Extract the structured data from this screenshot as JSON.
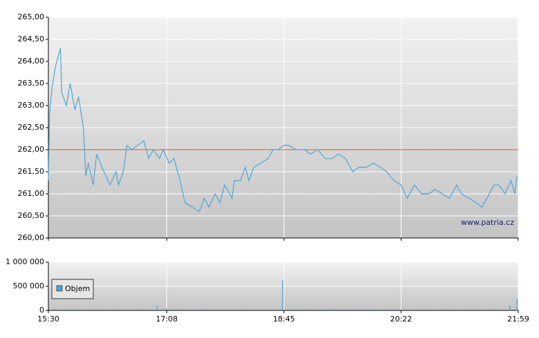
{
  "chart_data": [
    {
      "type": "line",
      "watermark": "www.patria.cz",
      "color": "#4da6d6",
      "reference_line": 262,
      "reference_color": "#e05050",
      "xlim": [
        930,
        1319
      ],
      "ylim": [
        260,
        265
      ],
      "yticks": [
        {
          "value": 260,
          "label": "260,00"
        },
        {
          "value": 260.5,
          "label": "260,50"
        },
        {
          "value": 261,
          "label": "261,00"
        },
        {
          "value": 261.5,
          "label": "261,50"
        },
        {
          "value": 262,
          "label": "262,00"
        },
        {
          "value": 262.5,
          "label": "262,50"
        },
        {
          "value": 263,
          "label": "263,00"
        },
        {
          "value": 263.5,
          "label": "263,50"
        },
        {
          "value": 264,
          "label": "264,00"
        },
        {
          "value": 264.5,
          "label": "264,50"
        },
        {
          "value": 265,
          "label": "265,00"
        }
      ],
      "x": [
        930,
        931,
        933,
        936,
        940,
        941,
        945,
        948,
        952,
        955,
        959,
        961,
        963,
        967,
        970,
        976,
        981,
        986,
        988,
        992,
        995,
        999,
        1004,
        1009,
        1013,
        1017,
        1022,
        1025,
        1030,
        1034,
        1039,
        1043,
        1049,
        1055,
        1059,
        1063,
        1068,
        1072,
        1076,
        1082,
        1084,
        1089,
        1093,
        1096,
        1100,
        1106,
        1112,
        1116,
        1120,
        1125,
        1129,
        1135,
        1142,
        1147,
        1153,
        1159,
        1165,
        1170,
        1176,
        1182,
        1187,
        1193,
        1199,
        1205,
        1210,
        1216,
        1222,
        1227,
        1233,
        1239,
        1245,
        1250,
        1256,
        1262,
        1268,
        1272,
        1278,
        1284,
        1289,
        1293,
        1299,
        1303,
        1308,
        1313,
        1316,
        1318
      ],
      "values": [
        261.3,
        262.8,
        263.4,
        263.9,
        264.3,
        263.3,
        263.0,
        263.5,
        262.9,
        263.2,
        262.5,
        261.4,
        261.7,
        261.2,
        261.9,
        261.5,
        261.2,
        261.5,
        261.2,
        261.5,
        262.1,
        262.0,
        262.1,
        262.2,
        261.8,
        262.0,
        261.8,
        262.0,
        261.7,
        261.8,
        261.3,
        260.8,
        260.7,
        260.6,
        260.9,
        260.7,
        261.0,
        260.8,
        261.2,
        260.9,
        261.3,
        261.3,
        261.6,
        261.3,
        261.6,
        261.7,
        261.8,
        262.0,
        262.0,
        262.1,
        262.1,
        262.0,
        262.0,
        261.9,
        262.0,
        261.8,
        261.8,
        261.9,
        261.8,
        261.5,
        261.6,
        261.6,
        261.7,
        261.6,
        261.5,
        261.3,
        261.2,
        260.9,
        261.2,
        261.0,
        261.0,
        261.1,
        261.0,
        260.9,
        261.2,
        261.0,
        260.9,
        260.8,
        260.7,
        260.9,
        261.2,
        261.2,
        261.0,
        261.3,
        261.0,
        261.4
      ]
    },
    {
      "type": "bar",
      "xlim": [
        930,
        1319
      ],
      "ylim": [
        0,
        1000000
      ],
      "xticks": [
        {
          "value": 930,
          "label": "15:30"
        },
        {
          "value": 1028,
          "label": "17:08"
        },
        {
          "value": 1125,
          "label": "18:45"
        },
        {
          "value": 1222,
          "label": "20:22"
        },
        {
          "value": 1319,
          "label": "21:59"
        }
      ],
      "yticks": [
        0,
        {
          "value": 500000,
          "label": "500 000"
        },
        {
          "value": 1000000,
          "label": "1 000 000"
        }
      ],
      "series": [
        {
          "name": "Objem",
          "color": "#4da6d6",
          "x": [
            935,
            945,
            955,
            965,
            975,
            985,
            995,
            1005,
            1015,
            1020,
            1028,
            1040,
            1050,
            1060,
            1070,
            1080,
            1090,
            1100,
            1110,
            1124,
            1135,
            1145,
            1155,
            1165,
            1175,
            1185,
            1195,
            1205,
            1215,
            1225,
            1235,
            1245,
            1255,
            1265,
            1275,
            1285,
            1295,
            1305,
            1312,
            1318
          ],
          "values": [
            30000,
            20000,
            25000,
            15000,
            20000,
            15000,
            20000,
            25000,
            20000,
            100000,
            40000,
            30000,
            20000,
            30000,
            20000,
            15000,
            25000,
            20000,
            15000,
            620000,
            20000,
            30000,
            20000,
            40000,
            25000,
            20000,
            30000,
            20000,
            25000,
            20000,
            15000,
            20000,
            30000,
            20000,
            25000,
            20000,
            30000,
            20000,
            100000,
            240000
          ]
        }
      ]
    }
  ]
}
